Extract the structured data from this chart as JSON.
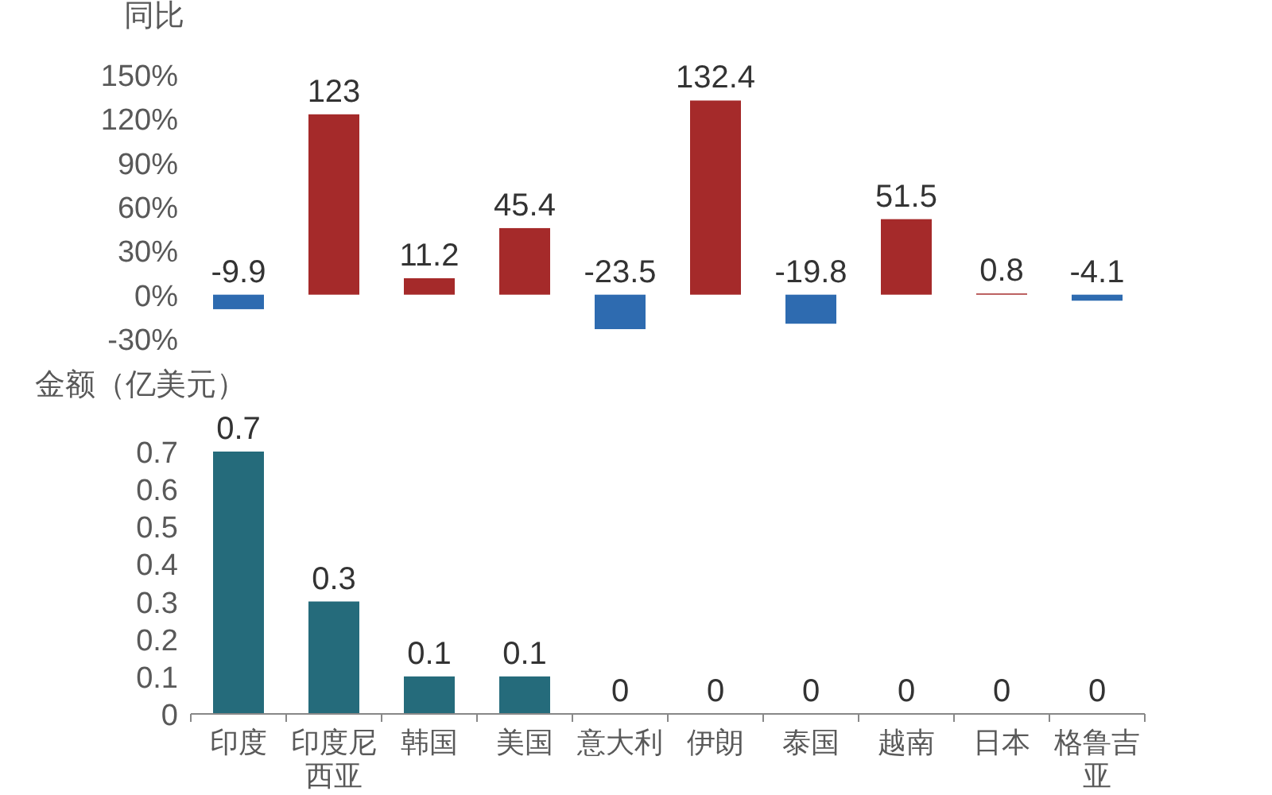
{
  "chart_data": [
    {
      "type": "bar",
      "ylabel": "同比",
      "categories": [
        "印度",
        "印度尼西亚",
        "韩国",
        "美国",
        "意大利",
        "伊朗",
        "泰国",
        "越南",
        "日本",
        "格鲁吉亚"
      ],
      "values": [
        -9.9,
        123,
        11.2,
        45.4,
        -23.5,
        132.4,
        -19.8,
        51.5,
        0.8,
        -4.1
      ],
      "colors": [
        "#2e6bb0",
        "#a52a2a",
        "#a52a2a",
        "#a52a2a",
        "#2e6bb0",
        "#a52a2a",
        "#2e6bb0",
        "#a52a2a",
        "#a52a2a",
        "#2e6bb0"
      ],
      "ylim": [
        -30,
        150
      ],
      "yticks": [
        {
          "value": -30,
          "label": "-30%"
        },
        {
          "value": 0,
          "label": "0%"
        },
        {
          "value": 30,
          "label": "30%"
        },
        {
          "value": 60,
          "label": "60%"
        },
        {
          "value": 90,
          "label": "90%"
        },
        {
          "value": 120,
          "label": "120%"
        },
        {
          "value": 150,
          "label": "150%"
        }
      ],
      "data_labels": true,
      "tick_labels": "y"
    },
    {
      "type": "bar",
      "ylabel": "金额（亿美元）",
      "categories": [
        "印度",
        "印度尼西亚",
        "韩国",
        "美国",
        "意大利",
        "伊朗",
        "泰国",
        "越南",
        "日本",
        "格鲁吉亚"
      ],
      "values": [
        0.7,
        0.3,
        0.1,
        0.1,
        0,
        0,
        0,
        0,
        0,
        0
      ],
      "color": "#256b7b",
      "ylim": [
        0,
        0.7
      ],
      "yticks": [
        0,
        0.1,
        0.2,
        0.3,
        0.4,
        0.5,
        0.6,
        0.7
      ],
      "data_labels": true
    }
  ]
}
